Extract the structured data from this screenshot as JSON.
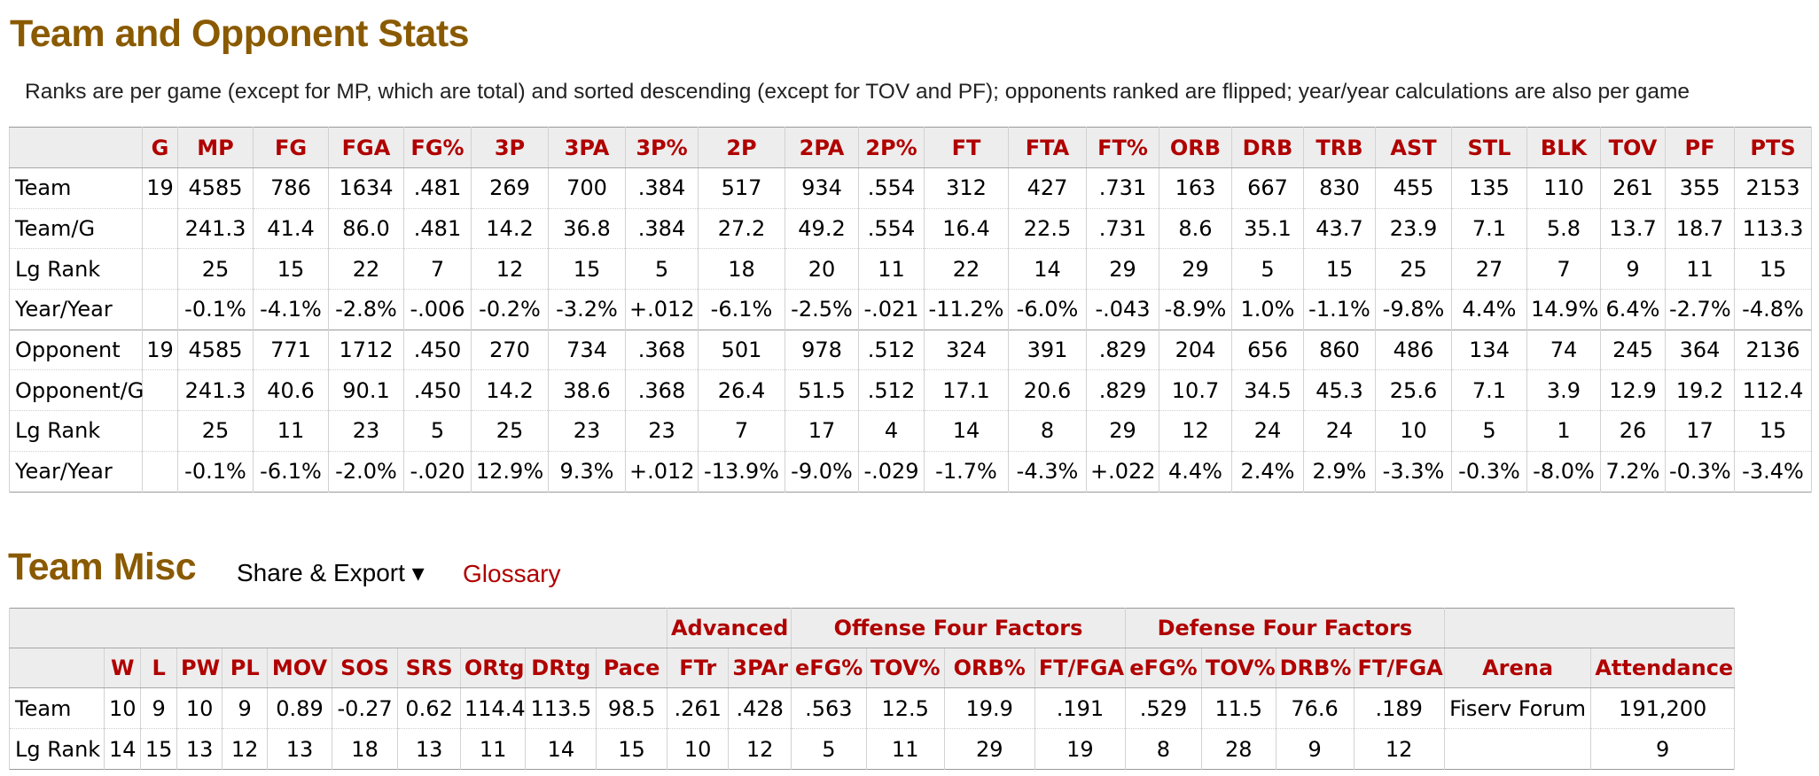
{
  "stats_section": {
    "title": "Team and Opponent Stats",
    "note": "Ranks are per game (except for MP, which are total) and sorted descending (except for TOV and PF); opponents ranked are flipped; year/year calculations are also per game",
    "columns": [
      "",
      "G",
      "MP",
      "FG",
      "FGA",
      "FG%",
      "3P",
      "3PA",
      "3P%",
      "2P",
      "2PA",
      "2P%",
      "FT",
      "FTA",
      "FT%",
      "ORB",
      "DRB",
      "TRB",
      "AST",
      "STL",
      "BLK",
      "TOV",
      "PF",
      "PTS"
    ],
    "rows": [
      [
        "Team",
        "19",
        "4585",
        "786",
        "1634",
        ".481",
        "269",
        "700",
        ".384",
        "517",
        "934",
        ".554",
        "312",
        "427",
        ".731",
        "163",
        "667",
        "830",
        "455",
        "135",
        "110",
        "261",
        "355",
        "2153"
      ],
      [
        "Team/G",
        "",
        "241.3",
        "41.4",
        "86.0",
        ".481",
        "14.2",
        "36.8",
        ".384",
        "27.2",
        "49.2",
        ".554",
        "16.4",
        "22.5",
        ".731",
        "8.6",
        "35.1",
        "43.7",
        "23.9",
        "7.1",
        "5.8",
        "13.7",
        "18.7",
        "113.3"
      ],
      [
        "Lg Rank",
        "",
        "25",
        "15",
        "22",
        "7",
        "12",
        "15",
        "5",
        "18",
        "20",
        "11",
        "22",
        "14",
        "29",
        "29",
        "5",
        "15",
        "25",
        "27",
        "7",
        "9",
        "11",
        "15"
      ],
      [
        "Year/Year",
        "",
        "-0.1%",
        "-4.1%",
        "-2.8%",
        "-.006",
        "-0.2%",
        "-3.2%",
        "+.012",
        "-6.1%",
        "-2.5%",
        "-.021",
        "-11.2%",
        "-6.0%",
        "-.043",
        "-8.9%",
        "1.0%",
        "-1.1%",
        "-9.8%",
        "4.4%",
        "14.9%",
        "6.4%",
        "-2.7%",
        "-4.8%"
      ],
      [
        "Opponent",
        "19",
        "4585",
        "771",
        "1712",
        ".450",
        "270",
        "734",
        ".368",
        "501",
        "978",
        ".512",
        "324",
        "391",
        ".829",
        "204",
        "656",
        "860",
        "486",
        "134",
        "74",
        "245",
        "364",
        "2136"
      ],
      [
        "Opponent/G",
        "",
        "241.3",
        "40.6",
        "90.1",
        ".450",
        "14.2",
        "38.6",
        ".368",
        "26.4",
        "51.5",
        ".512",
        "17.1",
        "20.6",
        ".829",
        "10.7",
        "34.5",
        "45.3",
        "25.6",
        "7.1",
        "3.9",
        "12.9",
        "19.2",
        "112.4"
      ],
      [
        "Lg Rank",
        "",
        "25",
        "11",
        "23",
        "5",
        "25",
        "23",
        "23",
        "7",
        "17",
        "4",
        "14",
        "8",
        "29",
        "12",
        "24",
        "24",
        "10",
        "5",
        "1",
        "26",
        "17",
        "15"
      ],
      [
        "Year/Year",
        "",
        "-0.1%",
        "-6.1%",
        "-2.0%",
        "-.020",
        "12.9%",
        "9.3%",
        "+.012",
        "-13.9%",
        "-9.0%",
        "-.029",
        "-1.7%",
        "-4.3%",
        "+.022",
        "4.4%",
        "2.4%",
        "2.9%",
        "-3.3%",
        "-0.3%",
        "-8.0%",
        "7.2%",
        "-0.3%",
        "-3.4%"
      ]
    ]
  },
  "misc_section": {
    "title": "Team Misc",
    "share_export_label": "Share & Export ▾",
    "glossary_label": "Glossary",
    "groups": {
      "advanced": "Advanced",
      "offense": "Offense Four Factors",
      "defense": "Defense Four Factors"
    },
    "columns": [
      "",
      "W",
      "L",
      "PW",
      "PL",
      "MOV",
      "SOS",
      "SRS",
      "ORtg",
      "DRtg",
      "Pace",
      "FTr",
      "3PAr",
      "eFG%",
      "TOV%",
      "ORB%",
      "FT/FGA",
      "eFG%",
      "TOV%",
      "DRB%",
      "FT/FGA",
      "Arena",
      "Attendance"
    ],
    "rows": [
      [
        "Team",
        "10",
        "9",
        "10",
        "9",
        "0.89",
        "-0.27",
        "0.62",
        "114.4",
        "113.5",
        "98.5",
        ".261",
        ".428",
        ".563",
        "12.5",
        "19.9",
        ".191",
        ".529",
        "11.5",
        "76.6",
        ".189",
        "Fiserv Forum",
        "191,200"
      ],
      [
        "Lg Rank",
        "14",
        "15",
        "13",
        "12",
        "13",
        "18",
        "13",
        "11",
        "14",
        "15",
        "10",
        "12",
        "5",
        "11",
        "29",
        "19",
        "8",
        "28",
        "9",
        "12",
        "",
        "9"
      ]
    ]
  }
}
